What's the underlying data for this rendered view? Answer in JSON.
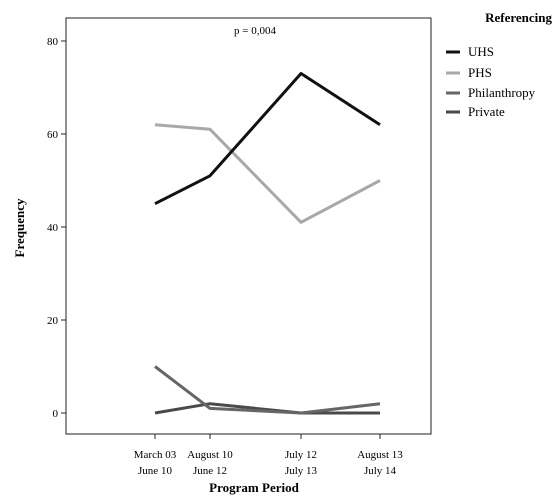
{
  "chart_data": {
    "type": "line",
    "title": "",
    "annotation": "p = 0,004",
    "xlabel": "Program Period",
    "ylabel": "Frequency",
    "categories": [
      [
        "March 03",
        "June 10"
      ],
      [
        "August 10",
        "June 12"
      ],
      [
        "July 12",
        "July 13"
      ],
      [
        "August 13",
        "July 14"
      ]
    ],
    "ylim": [
      -4,
      86
    ],
    "yticks": [
      0,
      20,
      40,
      60,
      80
    ],
    "grid": false,
    "legend": {
      "title": "Referencing",
      "placement": "right"
    },
    "series": [
      {
        "name": "UHS",
        "color": "#111111",
        "values": [
          45,
          51,
          73,
          62
        ]
      },
      {
        "name": "PHS",
        "color": "#a8a8a8",
        "values": [
          62,
          61,
          41,
          50
        ]
      },
      {
        "name": "Philanthropy",
        "color": "#666666",
        "values": [
          10,
          1,
          0,
          2
        ]
      },
      {
        "name": "Private",
        "color": "#4a4a4a",
        "values": [
          0,
          2,
          0,
          0
        ]
      }
    ]
  }
}
